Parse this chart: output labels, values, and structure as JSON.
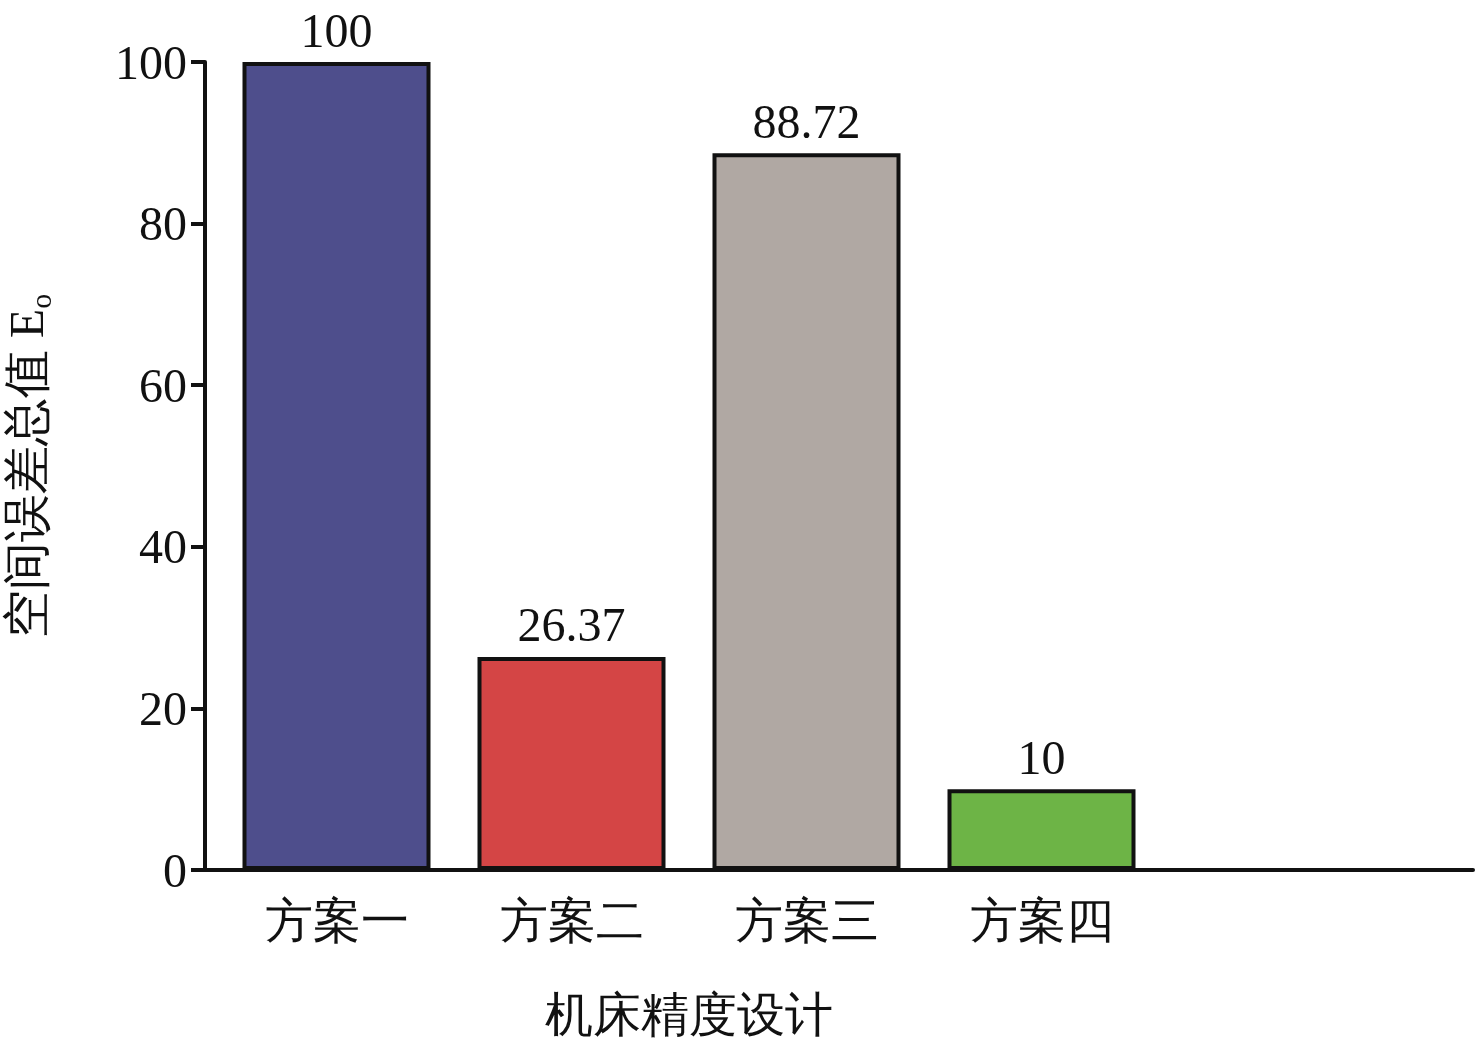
{
  "chart_data": {
    "type": "bar",
    "xlabel": "机床精度设计",
    "ylabel": "空间误差总值 E$_{o}$",
    "categories": [
      "方案一",
      "方案二",
      "方案三",
      "方案四"
    ],
    "values": [
      100,
      26.37,
      88.72,
      10
    ],
    "colors": [
      "#4e4e8c",
      "#d44545",
      "#b0a8a3",
      "#6db446"
    ],
    "ylim": [
      0,
      100
    ],
    "yticks": [
      0,
      20,
      40,
      60,
      80,
      100
    ],
    "data_labels": true,
    "grid": false
  }
}
